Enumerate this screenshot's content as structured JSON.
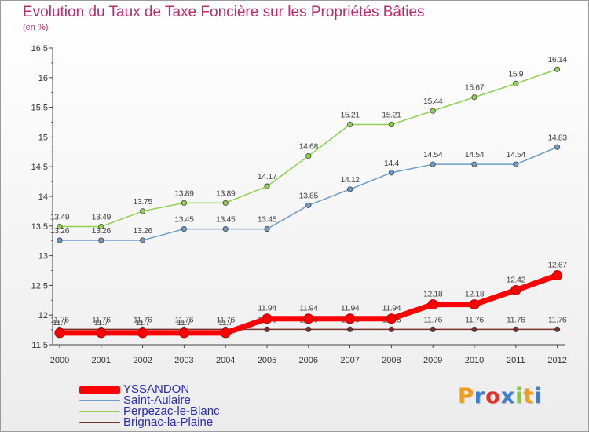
{
  "title": "Evolution du Taux de Taxe Foncière sur les Propriétés Bâties",
  "subtitle": "(en %)",
  "logo": {
    "letters": [
      "P",
      "r",
      "o",
      "x",
      "i",
      "t",
      "i"
    ],
    "colors": [
      "#f39c12",
      "#3a7fd5",
      "#e2312b",
      "#3a7fd5",
      "#8bc34a",
      "#f39c12",
      "#3a7fd5"
    ]
  },
  "chart_data": {
    "type": "line",
    "x": [
      "2000",
      "2001",
      "2002",
      "2003",
      "2004",
      "2005",
      "2006",
      "2007",
      "2008",
      "2009",
      "2010",
      "2011",
      "2012"
    ],
    "ylim": [
      11.5,
      16.5
    ],
    "yticks": [
      "11.5",
      "12",
      "12.5",
      "13",
      "13.5",
      "14",
      "14.5",
      "15",
      "15.5",
      "16",
      "16.5"
    ],
    "grid": false,
    "legend_position": "bottom-left",
    "series": [
      {
        "name": "Brignac-la-Plaine",
        "color": "#7a2f2f",
        "line_width": 1.5,
        "values": [
          11.76,
          11.76,
          11.76,
          11.76,
          11.76,
          11.76,
          11.76,
          11.76,
          11.76,
          11.76,
          11.76,
          11.76,
          11.76
        ],
        "labels": [
          "11.76",
          "11.76",
          "11.76",
          "11.76",
          "11.76",
          "11.76",
          "11.76",
          "11.76",
          "11.76",
          "11.76",
          "11.76",
          "11.76",
          "11.76"
        ]
      },
      {
        "name": "Saint-Aulaire",
        "color": "#6e9cc8",
        "line_width": 1.5,
        "values": [
          13.26,
          13.26,
          13.26,
          13.45,
          13.45,
          13.45,
          13.85,
          14.12,
          14.4,
          14.54,
          14.54,
          14.54,
          14.83
        ],
        "labels": [
          "13.26",
          "13.26",
          "13.26",
          "13.45",
          "13.45",
          "13.45",
          "13.85",
          "14.12",
          "14.4",
          "14.54",
          "14.54",
          "14.54",
          "14.83"
        ]
      },
      {
        "name": "Perpezac-le-Blanc",
        "color": "#8fd14f",
        "line_width": 1.5,
        "values": [
          13.49,
          13.49,
          13.75,
          13.89,
          13.89,
          14.17,
          14.68,
          15.21,
          15.21,
          15.44,
          15.67,
          15.9,
          16.14
        ],
        "labels": [
          "13.49",
          "13.49",
          "13.75",
          "13.89",
          "13.89",
          "14.17",
          "14.68",
          "15.21",
          "15.21",
          "15.44",
          "15.67",
          "15.9",
          "16.14"
        ]
      },
      {
        "name": "YSSANDON",
        "color": "#ff0000",
        "line_width": 7,
        "values": [
          11.7,
          11.7,
          11.7,
          11.7,
          11.7,
          11.94,
          11.94,
          11.94,
          11.94,
          12.18,
          12.18,
          12.42,
          12.67
        ],
        "labels": [
          "11.7",
          "11.7",
          "11.7",
          "11.7",
          "11.7",
          "11.94",
          "11.94",
          "11.94",
          "11.94",
          "12.18",
          "12.18",
          "12.42",
          "12.67"
        ]
      }
    ],
    "legend": [
      {
        "name": "YSSANDON",
        "color": "#ff0000",
        "thickness": 9
      },
      {
        "name": "Saint-Aulaire",
        "color": "#6e9cc8",
        "thickness": 2
      },
      {
        "name": "Perpezac-le-Blanc",
        "color": "#8fd14f",
        "thickness": 2
      },
      {
        "name": "Brignac-la-Plaine",
        "color": "#7a2f2f",
        "thickness": 2
      }
    ]
  }
}
